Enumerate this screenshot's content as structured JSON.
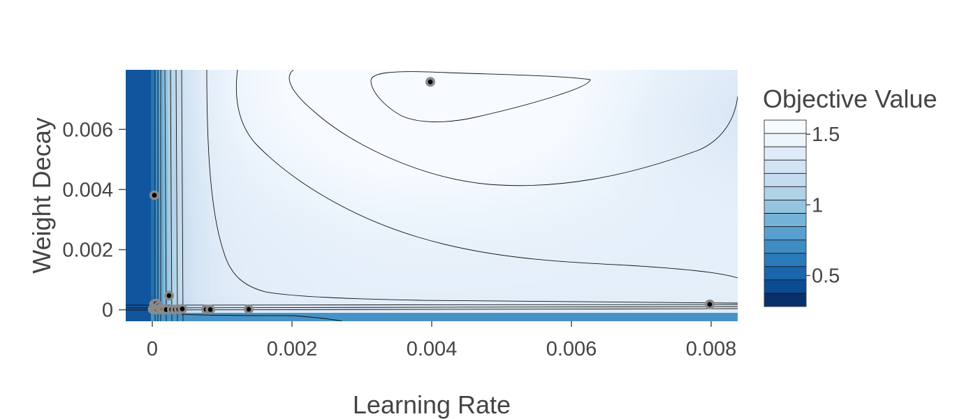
{
  "chart_data": {
    "type": "contour",
    "title": "",
    "xlabel": "Learning Rate",
    "ylabel": "Weight Decay",
    "xlim": [
      -0.00038,
      0.00838
    ],
    "ylim": [
      -0.00038,
      0.00798
    ],
    "xticks": [
      0,
      0.002,
      0.004,
      0.006,
      0.008
    ],
    "xtick_labels": [
      "0",
      "0.002",
      "0.004",
      "0.006",
      "0.008"
    ],
    "yticks": [
      0,
      0.002,
      0.004,
      0.006
    ],
    "ytick_labels": [
      "0",
      "0.002",
      "0.004",
      "0.006"
    ],
    "grid": false,
    "colorbar": {
      "title": "Objective Value",
      "colorscale": "Blues",
      "range": [
        0.28,
        1.6
      ],
      "ticks": [
        0.5,
        1,
        1.5
      ],
      "tick_labels": [
        "0.5",
        "1",
        "1.5"
      ],
      "colors": [
        "#08306b",
        "#0a4b94",
        "#1966ad",
        "#2a7ab9",
        "#3d8dc4",
        "#57a0ce",
        "#74b3d8",
        "#94c4df",
        "#b0d2e7",
        "#c5dbef",
        "#d2e3f3",
        "#dfebf7",
        "#ecf4fc",
        "#f7fbff"
      ]
    },
    "trials": [
      {
        "x": 6e-06,
        "y": 2.2e-05
      },
      {
        "x": 1.5e-05,
        "y": 3.5e-05
      },
      {
        "x": 2.5e-05,
        "y": 0.00018
      },
      {
        "x": 3e-05,
        "y": 0.00381
      },
      {
        "x": 4e-05,
        "y": 1.2e-05
      },
      {
        "x": 5.5e-05,
        "y": 0.00021
      },
      {
        "x": 7e-05,
        "y": 1.5e-05
      },
      {
        "x": 9e-05,
        "y": 0.00013
      },
      {
        "x": 0.00011,
        "y": 4.5e-05
      },
      {
        "x": 0.00013,
        "y": 8e-06
      },
      {
        "x": 0.00016,
        "y": 1.9e-05
      },
      {
        "x": 0.0002,
        "y": 6e-06
      },
      {
        "x": 0.00024,
        "y": 0.00047
      },
      {
        "x": 0.00028,
        "y": 1.1e-05
      },
      {
        "x": 0.00033,
        "y": 9e-06
      },
      {
        "x": 0.00038,
        "y": 1.4e-05
      },
      {
        "x": 0.00043,
        "y": 3e-05
      },
      {
        "x": 0.00077,
        "y": 1.2e-05
      },
      {
        "x": 0.00083,
        "y": 8e-06
      },
      {
        "x": 0.00138,
        "y": 1.8e-05
      },
      {
        "x": 0.00398,
        "y": 0.00758
      },
      {
        "x": 0.00798,
        "y": 0.00018
      }
    ]
  }
}
